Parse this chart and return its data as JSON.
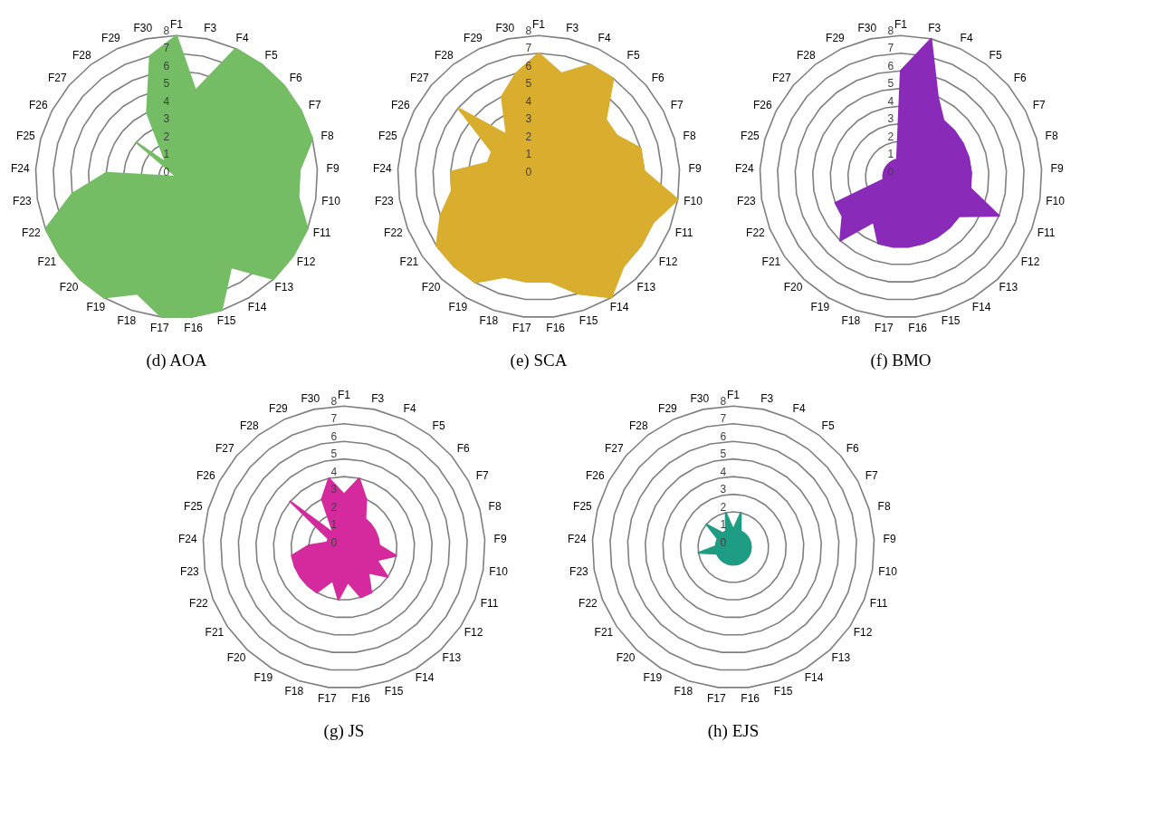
{
  "chart_data": [
    {
      "type": "radar",
      "title": "(d) AOA",
      "categories": [
        "F1",
        "F3",
        "F4",
        "F5",
        "F6",
        "F7",
        "F8",
        "F9",
        "F10",
        "F11",
        "F12",
        "F13",
        "F14",
        "F15",
        "F16",
        "F17",
        "F18",
        "F19",
        "F20",
        "F21",
        "F22",
        "F23",
        "F24",
        "F25",
        "F26",
        "F27",
        "F28",
        "F29",
        "F30"
      ],
      "ylim": [
        0,
        8
      ],
      "yticks": [
        0,
        1,
        2,
        3,
        4,
        5,
        6,
        7,
        8
      ],
      "grid": true,
      "series": [
        {
          "color": "#74bd64",
          "values": [
            8,
            5,
            8,
            8,
            8,
            8,
            8,
            7,
            7,
            8,
            8,
            8,
            6,
            8,
            8,
            8,
            7,
            8,
            8,
            8,
            8,
            6,
            4,
            0,
            0,
            3,
            1,
            4,
            7
          ]
        }
      ]
    },
    {
      "type": "radar",
      "title": "(e) SCA",
      "categories": [
        "F1",
        "F3",
        "F4",
        "F5",
        "F6",
        "F7",
        "F8",
        "F9",
        "F10",
        "F11",
        "F12",
        "F13",
        "F14",
        "F15",
        "F16",
        "F17",
        "F18",
        "F19",
        "F20",
        "F21",
        "F22",
        "F23",
        "F24",
        "F25",
        "F26",
        "F27",
        "F28",
        "F29",
        "F30"
      ],
      "ylim": [
        0,
        8
      ],
      "yticks": [
        0,
        1,
        2,
        3,
        4,
        5,
        6,
        7,
        8
      ],
      "grid": true,
      "series": [
        {
          "color": "#d9ad2e",
          "values": [
            7,
            6,
            7,
            7,
            5,
            5,
            6,
            6,
            8,
            7,
            7,
            7,
            8,
            7,
            6,
            6,
            6,
            7,
            7,
            7,
            6,
            5,
            5,
            3,
            3,
            6,
            3,
            5,
            6
          ]
        }
      ]
    },
    {
      "type": "radar",
      "title": "(f) BMO",
      "categories": [
        "F1",
        "F3",
        "F4",
        "F5",
        "F6",
        "F7",
        "F8",
        "F9",
        "F10",
        "F11",
        "F12",
        "F13",
        "F14",
        "F15",
        "F16",
        "F17",
        "F18",
        "F19",
        "F20",
        "F21",
        "F22",
        "F23",
        "F24",
        "F25",
        "F26",
        "F27",
        "F28",
        "F29",
        "F30"
      ],
      "ylim": [
        0,
        8
      ],
      "yticks": [
        0,
        1,
        2,
        3,
        4,
        5,
        6,
        7,
        8
      ],
      "grid": true,
      "series": [
        {
          "color": "#8a2ab8",
          "values": [
            6,
            8,
            5,
            4,
            4,
            4,
            4,
            4,
            4,
            6,
            4,
            4,
            4,
            4,
            4,
            4,
            4,
            3,
            5,
            4,
            4,
            1,
            1,
            1,
            1,
            1,
            1,
            1,
            1
          ]
        }
      ]
    },
    {
      "type": "radar",
      "title": "(g) JS",
      "categories": [
        "F1",
        "F3",
        "F4",
        "F5",
        "F6",
        "F7",
        "F8",
        "F9",
        "F10",
        "F11",
        "F12",
        "F13",
        "F14",
        "F15",
        "F16",
        "F17",
        "F18",
        "F19",
        "F20",
        "F21",
        "F22",
        "F23",
        "F24",
        "F25",
        "F26",
        "F27",
        "F28",
        "F29",
        "F30"
      ],
      "ylim": [
        0,
        8
      ],
      "yticks": [
        0,
        1,
        2,
        3,
        4,
        5,
        6,
        7,
        8
      ],
      "grid": true,
      "series": [
        {
          "color": "#d42a9e",
          "values": [
            3,
            4,
            3,
            2,
            2,
            2,
            2,
            2,
            3,
            2,
            3,
            2,
            3,
            3,
            2,
            3,
            2,
            3,
            3,
            3,
            3,
            3,
            2,
            1,
            1,
            4,
            1,
            3,
            4
          ]
        }
      ]
    },
    {
      "type": "radar",
      "title": "(h) EJS",
      "categories": [
        "F1",
        "F3",
        "F4",
        "F5",
        "F6",
        "F7",
        "F8",
        "F9",
        "F10",
        "F11",
        "F12",
        "F13",
        "F14",
        "F15",
        "F16",
        "F17",
        "F18",
        "F19",
        "F20",
        "F21",
        "F22",
        "F23",
        "F24",
        "F25",
        "F26",
        "F27",
        "F28",
        "F29",
        "F30"
      ],
      "ylim": [
        0,
        8
      ],
      "yticks": [
        0,
        1,
        2,
        3,
        4,
        5,
        6,
        7,
        8
      ],
      "grid": true,
      "series": [
        {
          "color": "#1f9c84",
          "values": [
            1,
            2,
            1,
            1,
            1,
            1,
            1,
            1,
            1,
            1,
            1,
            1,
            1,
            1,
            1,
            1,
            1,
            1,
            1,
            1,
            1,
            2,
            1,
            1,
            1,
            2,
            1,
            1,
            2
          ]
        }
      ]
    }
  ]
}
